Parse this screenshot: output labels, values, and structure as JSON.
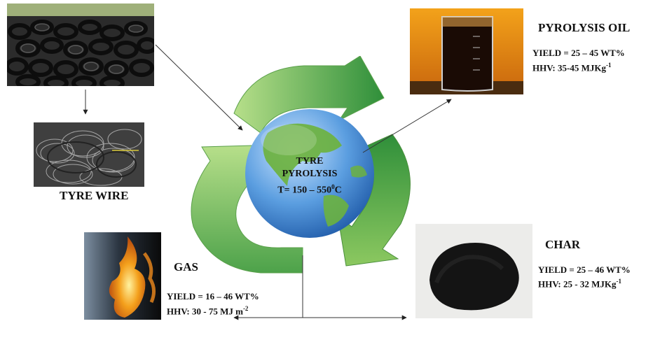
{
  "center": {
    "line1": "TYRE",
    "line2": "PYROLYSIS",
    "line3_prefix": "T= 150 – 550",
    "line3_sup": "0",
    "line3_suffix": "C"
  },
  "tyre_wire": {
    "label": "TYRE WIRE"
  },
  "pyrolysis_oil": {
    "title": "PYROLYSIS OIL",
    "yield": "YIELD = 25 – 45 WT%",
    "hhv": "HHV: 35-45 MJKg",
    "hhv_sup": "-1"
  },
  "char": {
    "title": "CHAR",
    "yield": "YIELD = 25 – 46 WT%",
    "hhv": "HHV: 25 - 32 MJKg",
    "hhv_sup": "-1"
  },
  "gas": {
    "title": "GAS",
    "yield": "YIELD = 16 – 46 WT%",
    "hhv": "HHV: 30 - 75 MJ m",
    "hhv_sup": "-2"
  },
  "colors": {
    "arrow_light": "#a6d77a",
    "arrow_dark": "#2f8f3a",
    "globe_ocean": "#4d8fd4",
    "globe_land": "#6cb23f",
    "oil": "#1a0b05",
    "flame": "#f08a1c"
  }
}
